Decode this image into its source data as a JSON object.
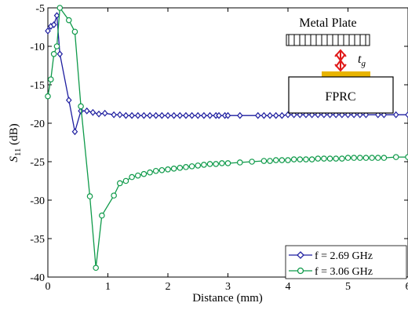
{
  "chart_data": {
    "type": "line",
    "xlabel": "Distance (mm)",
    "ylabel": "S11 (dB)",
    "xlim": [
      0,
      6
    ],
    "ylim": [
      -40,
      -5
    ],
    "xticks": [
      "0",
      "1",
      "2",
      "3",
      "4",
      "5",
      "6"
    ],
    "yticks": [
      "-5",
      "-10",
      "-15",
      "-20",
      "-25",
      "-30",
      "-35",
      "-40"
    ],
    "grid": false,
    "legend_position": "bottom-right",
    "series": [
      {
        "name": "f = 2.69 GHz",
        "marker": "diamond",
        "color": "#1f1fa0",
        "x": [
          0.0,
          0.05,
          0.1,
          0.15,
          0.2,
          0.35,
          0.45,
          0.55,
          0.65,
          0.75,
          0.85,
          0.95,
          1.1,
          1.2,
          1.3,
          1.4,
          1.5,
          1.6,
          1.7,
          1.8,
          1.9,
          2.0,
          2.1,
          2.2,
          2.3,
          2.4,
          2.5,
          2.6,
          2.7,
          2.8,
          2.85,
          2.95,
          3.0,
          3.2,
          3.5,
          3.6,
          3.7,
          3.8,
          3.9,
          4.0,
          4.1,
          4.2,
          4.3,
          4.4,
          4.5,
          4.6,
          4.7,
          4.8,
          4.9,
          5.0,
          5.1,
          5.2,
          5.3,
          5.5,
          5.6,
          5.8,
          6.0
        ],
        "y": [
          -8.0,
          -7.4,
          -7.2,
          -6.0,
          -11.0,
          -17.0,
          -21.1,
          -18.4,
          -18.4,
          -18.6,
          -18.8,
          -18.7,
          -18.9,
          -18.9,
          -19.0,
          -19.0,
          -19.0,
          -19.0,
          -19.0,
          -19.0,
          -19.0,
          -19.0,
          -19.0,
          -19.0,
          -19.0,
          -19.0,
          -19.0,
          -19.0,
          -19.0,
          -19.0,
          -19.0,
          -19.0,
          -19.0,
          -19.0,
          -19.0,
          -19.0,
          -19.0,
          -19.0,
          -19.0,
          -18.9,
          -18.9,
          -18.9,
          -18.9,
          -18.9,
          -18.9,
          -18.9,
          -18.9,
          -18.9,
          -18.9,
          -18.9,
          -18.9,
          -18.9,
          -18.9,
          -18.9,
          -18.9,
          -18.9,
          -18.9
        ]
      },
      {
        "name": "f = 3.06 GHz",
        "marker": "circle",
        "color": "#0f9a4a",
        "x": [
          0.0,
          0.05,
          0.1,
          0.15,
          0.2,
          0.35,
          0.45,
          0.55,
          0.7,
          0.8,
          0.9,
          1.1,
          1.2,
          1.3,
          1.4,
          1.5,
          1.6,
          1.7,
          1.8,
          1.9,
          2.0,
          2.1,
          2.2,
          2.3,
          2.4,
          2.5,
          2.6,
          2.7,
          2.8,
          2.9,
          3.0,
          3.2,
          3.4,
          3.6,
          3.7,
          3.8,
          3.9,
          4.0,
          4.1,
          4.2,
          4.3,
          4.4,
          4.5,
          4.6,
          4.7,
          4.8,
          4.9,
          5.0,
          5.1,
          5.2,
          5.3,
          5.4,
          5.5,
          5.6,
          5.8,
          6.0
        ],
        "y": [
          -16.5,
          -14.3,
          -11.0,
          -10.0,
          -5.0,
          -6.6,
          -8.1,
          -17.8,
          -29.5,
          -38.8,
          -32.0,
          -29.4,
          -27.8,
          -27.5,
          -27.0,
          -26.8,
          -26.6,
          -26.4,
          -26.2,
          -26.1,
          -26.0,
          -25.9,
          -25.8,
          -25.7,
          -25.6,
          -25.5,
          -25.4,
          -25.3,
          -25.3,
          -25.2,
          -25.2,
          -25.1,
          -25.0,
          -24.9,
          -24.9,
          -24.8,
          -24.8,
          -24.8,
          -24.7,
          -24.7,
          -24.7,
          -24.7,
          -24.6,
          -24.6,
          -24.6,
          -24.6,
          -24.6,
          -24.5,
          -24.5,
          -24.5,
          -24.5,
          -24.5,
          -24.5,
          -24.5,
          -24.4,
          -24.4
        ]
      }
    ],
    "inset": {
      "top_label": "Metal Plate",
      "gap_label": "t",
      "gap_subscript": "g",
      "box_label": "FPRC"
    }
  }
}
